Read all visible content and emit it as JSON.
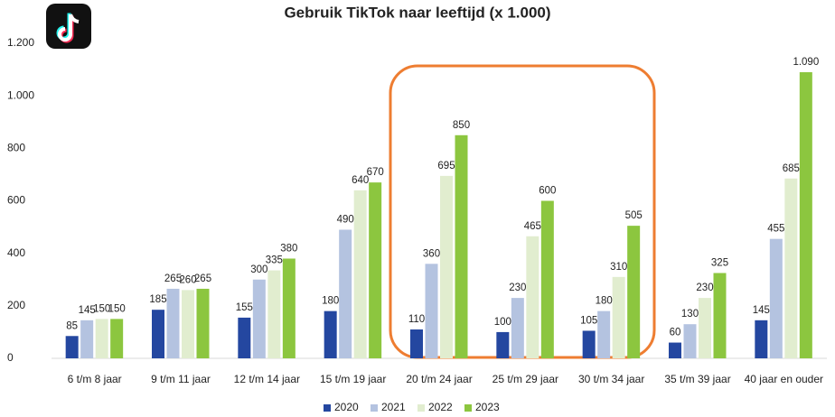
{
  "chart_data": {
    "type": "bar",
    "title": "Gebruik TikTok naar leeftijd (x 1.000)",
    "categories": [
      "6 t/m 8 jaar",
      "9 t/m 11 jaar",
      "12 t/m 14 jaar",
      "15 t/m 19 jaar",
      "20 t/m 24 jaar",
      "25 t/m 29 jaar",
      "30 t/m 34 jaar",
      "35 t/m 39 jaar",
      "40 jaar en ouder"
    ],
    "series": [
      {
        "name": "2020",
        "color": "#2447a0",
        "values": [
          85,
          185,
          155,
          180,
          110,
          100,
          105,
          60,
          145
        ]
      },
      {
        "name": "2021",
        "color": "#b4c3e0",
        "values": [
          145,
          265,
          300,
          490,
          360,
          230,
          180,
          130,
          455
        ]
      },
      {
        "name": "2022",
        "color": "#e1edcf",
        "values": [
          150,
          260,
          335,
          640,
          695,
          465,
          310,
          230,
          685
        ]
      },
      {
        "name": "2023",
        "color": "#8cc63f",
        "values": [
          150,
          265,
          380,
          670,
          850,
          600,
          505,
          325,
          1090
        ],
        "value_labels": [
          "150",
          "265",
          "380",
          "670",
          "850",
          "600",
          "505",
          "325",
          "1.090"
        ]
      }
    ],
    "ylim": [
      0,
      1200
    ],
    "yticks": [
      0,
      200,
      400,
      600,
      800,
      {
        "value": 1000,
        "label": "1.000"
      },
      {
        "value": 1200,
        "label": "1.200"
      }
    ],
    "grid": false,
    "legend": "bottom"
  }
}
